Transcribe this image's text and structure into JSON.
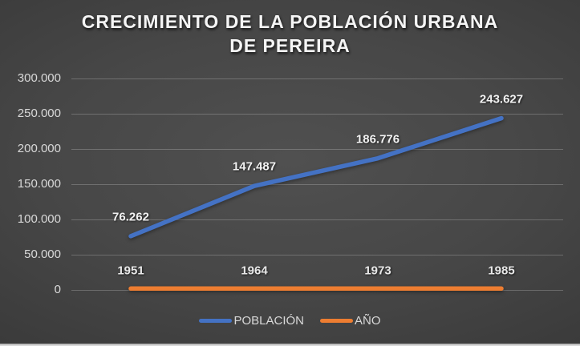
{
  "chart_data": {
    "type": "line",
    "title": "CRECIMIENTO DE LA POBLACIÓN URBANA DE PEREIRA",
    "categories": [
      "1951",
      "1964",
      "1973",
      "1985"
    ],
    "series": [
      {
        "name": "POBLACIÓN",
        "values": [
          76262,
          147487,
          186776,
          243627
        ],
        "point_labels": [
          "76.262",
          "147.487",
          "186.776",
          "243.627"
        ],
        "color": "#4472C4"
      },
      {
        "name": "AÑO",
        "values": [
          1951,
          1964,
          1973,
          1985
        ],
        "point_labels": [
          "1951",
          "1964",
          "1973",
          "1985"
        ],
        "color": "#ED7D31"
      }
    ],
    "ylim": [
      0,
      300000
    ],
    "ytick_labels": [
      "0",
      "50.000",
      "100.000",
      "150.000",
      "200.000",
      "250.000",
      "300.000"
    ],
    "grid": true,
    "legend_position": "bottom",
    "legend": [
      "POBLACIÓN",
      "AÑO"
    ]
  },
  "colors": {
    "poblacion_line": "#4472C4",
    "ano_line": "#ED7D31",
    "axis_text": "#D9D9D9",
    "data_label_text": "#F2F2F2",
    "title_text": "#F5F5F5"
  }
}
